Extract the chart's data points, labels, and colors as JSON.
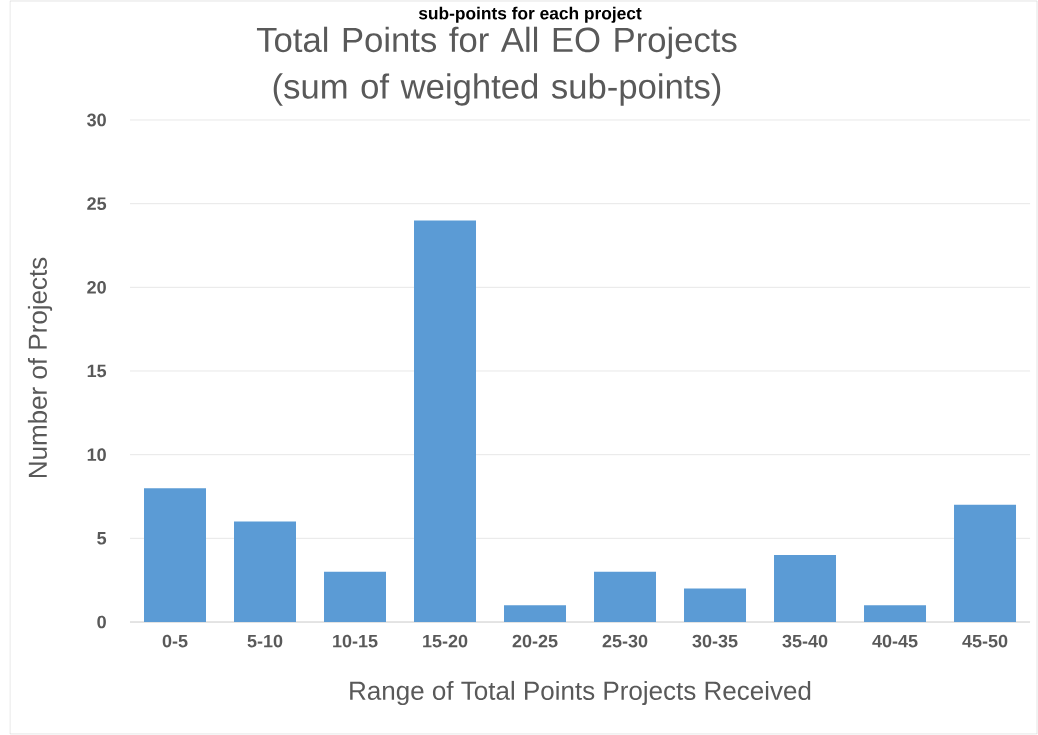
{
  "chart_data": {
    "type": "bar",
    "title": "Total Points for All EO Projects (sum of weighted sub-points)",
    "annotations": [
      "sub-points for each project"
    ],
    "xlabel": "Range of Total Points Projects Received",
    "ylabel": "Number of Projects",
    "categories": [
      "0-5",
      "5-10",
      "10-15",
      "15-20",
      "20-25",
      "25-30",
      "30-35",
      "35-40",
      "40-45",
      "45-50"
    ],
    "values": [
      8,
      6,
      3,
      24,
      1,
      3,
      2,
      4,
      1,
      7
    ],
    "color": "#5b9bd5",
    "ylim": [
      0,
      30
    ],
    "yticks": [
      0,
      5,
      10,
      15,
      20,
      25,
      30
    ],
    "grid": "y"
  }
}
